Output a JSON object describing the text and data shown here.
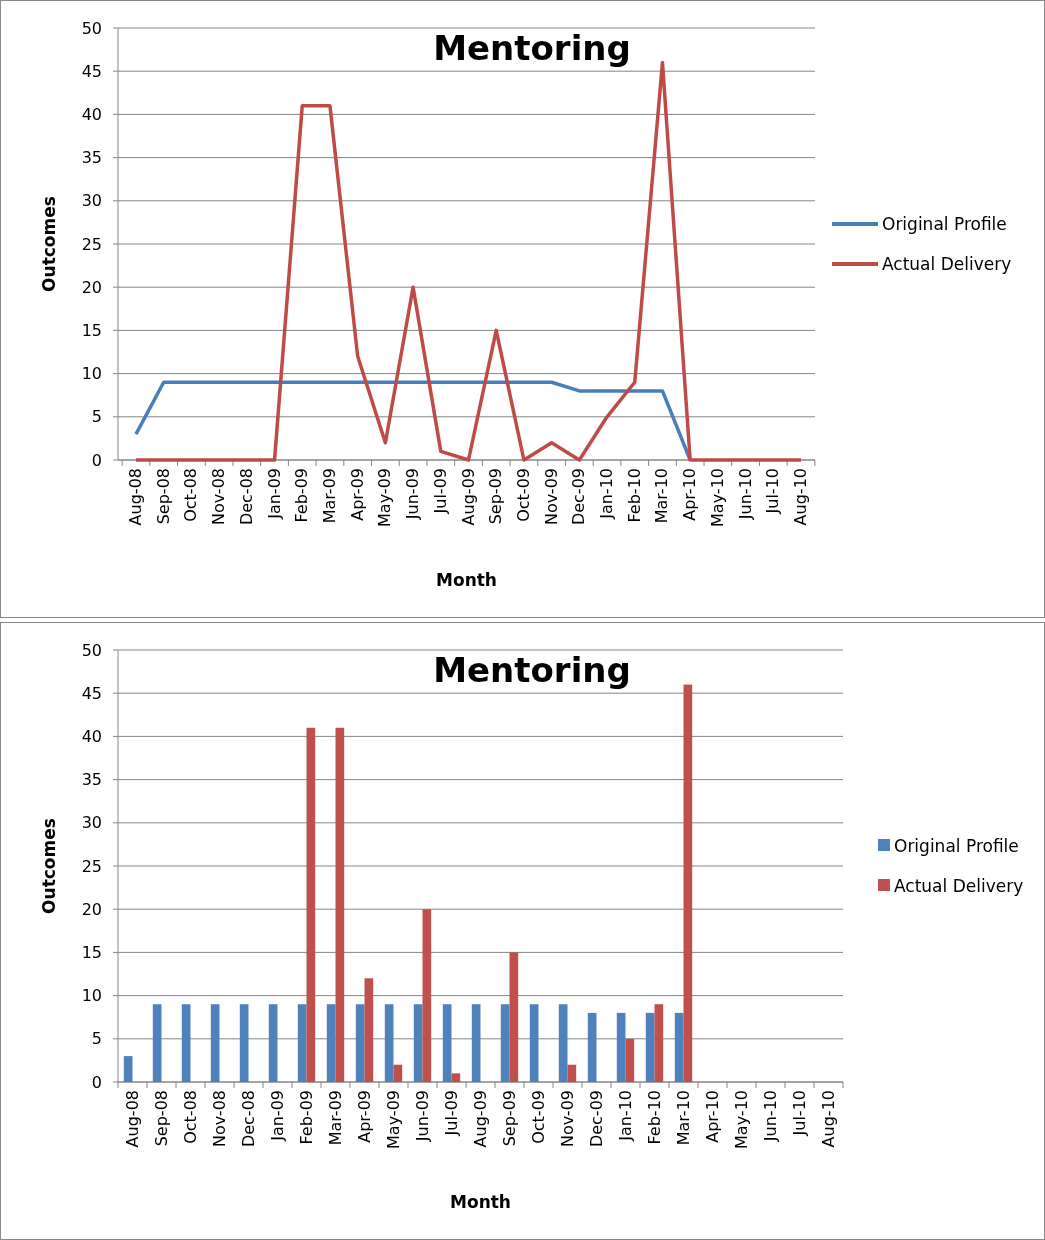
{
  "chart_data": [
    {
      "type": "line",
      "title": "Mentoring",
      "xlabel": "Month",
      "ylabel": "Outcomes",
      "categories": [
        "Aug-08",
        "Sep-08",
        "Oct-08",
        "Nov-08",
        "Dec-08",
        "Jan-09",
        "Feb-09",
        "Mar-09",
        "Apr-09",
        "May-09",
        "Jun-09",
        "Jul-09",
        "Aug-09",
        "Sep-09",
        "Oct-09",
        "Nov-09",
        "Dec-09",
        "Jan-10",
        "Feb-10",
        "Mar-10",
        "Apr-10",
        "May-10",
        "Jun-10",
        "Jul-10",
        "Aug-10"
      ],
      "series": [
        {
          "name": "Original Profile",
          "color": "#4a7ebb",
          "values": [
            3,
            9,
            9,
            9,
            9,
            9,
            9,
            9,
            9,
            9,
            9,
            9,
            9,
            9,
            9,
            9,
            8,
            8,
            8,
            8,
            0,
            null,
            null,
            null,
            null
          ]
        },
        {
          "name": "Actual Delivery",
          "color": "#be4b48",
          "values": [
            0,
            0,
            0,
            0,
            0,
            0,
            41,
            41,
            12,
            2,
            20,
            1,
            0,
            15,
            0,
            2,
            0,
            5,
            9,
            46,
            0,
            0,
            0,
            0,
            0
          ]
        }
      ],
      "ylim": [
        0,
        50
      ],
      "yticks": [
        0,
        5,
        10,
        15,
        20,
        25,
        30,
        35,
        40,
        45,
        50
      ],
      "grid": "y",
      "legend": "right",
      "marker": "none"
    },
    {
      "type": "bar",
      "title": "Mentoring",
      "xlabel": "Month",
      "ylabel": "Outcomes",
      "categories": [
        "Aug-08",
        "Sep-08",
        "Oct-08",
        "Nov-08",
        "Dec-08",
        "Jan-09",
        "Feb-09",
        "Mar-09",
        "Apr-09",
        "May-09",
        "Jun-09",
        "Jul-09",
        "Aug-09",
        "Sep-09",
        "Oct-09",
        "Nov-09",
        "Dec-09",
        "Jan-10",
        "Feb-10",
        "Mar-10",
        "Apr-10",
        "May-10",
        "Jun-10",
        "Jul-10",
        "Aug-10"
      ],
      "series": [
        {
          "name": "Original Profile",
          "color": "#4f81bd",
          "values": [
            3,
            9,
            9,
            9,
            9,
            9,
            9,
            9,
            9,
            9,
            9,
            9,
            9,
            9,
            9,
            9,
            8,
            8,
            8,
            8,
            null,
            null,
            null,
            null,
            null
          ]
        },
        {
          "name": "Actual Delivery",
          "color": "#c0504d",
          "values": [
            0,
            0,
            0,
            0,
            0,
            0,
            41,
            41,
            12,
            2,
            20,
            1,
            0,
            15,
            0,
            2,
            0,
            5,
            9,
            46,
            0,
            0,
            0,
            0,
            0
          ]
        }
      ],
      "ylim": [
        0,
        50
      ],
      "yticks": [
        0,
        5,
        10,
        15,
        20,
        25,
        30,
        35,
        40,
        45,
        50
      ],
      "grid": "y",
      "legend": "right"
    }
  ]
}
